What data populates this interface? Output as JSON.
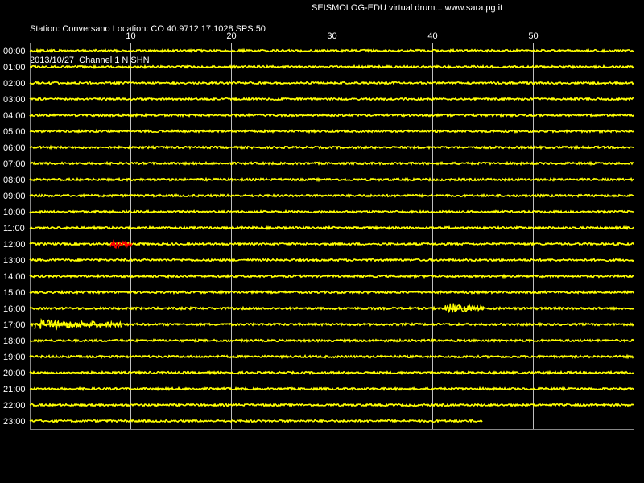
{
  "header": {
    "station_line": "Station: Conversano Location: CO 40.9712 17.1028 SPS:50",
    "date_line": "2013/10/27  Channel 1 N SHN",
    "app_line": "SEISMOLOG-EDU virtual drum... www.sara.pg.it"
  },
  "colors": {
    "background": "#000000",
    "trace": "#ffff00",
    "event": "#ff0000",
    "grid": "#ffffff",
    "text": "#ffffff"
  },
  "chart_data": {
    "type": "line",
    "xlabel": "",
    "ylabel": "",
    "xlim": [
      0,
      60
    ],
    "x_ticks": [
      "10",
      "20",
      "30",
      "40",
      "50"
    ],
    "x_tick_values": [
      10,
      20,
      30,
      40,
      50
    ],
    "hour_labels": [
      "00:00",
      "01:00",
      "02:00",
      "03:00",
      "04:00",
      "05:00",
      "06:00",
      "07:00",
      "08:00",
      "09:00",
      "10:00",
      "11:00",
      "12:00",
      "13:00",
      "14:00",
      "15:00",
      "16:00",
      "17:00",
      "18:00",
      "19:00",
      "20:00",
      "21:00",
      "22:00",
      "23:00"
    ],
    "trace_end_minute": [
      60,
      60,
      60,
      60,
      60,
      60,
      60,
      60,
      60,
      60,
      60,
      60,
      60,
      60,
      60,
      60,
      60,
      60,
      60,
      60,
      60,
      60,
      60,
      45
    ],
    "events": [
      {
        "hour": "12:00",
        "start_minute": 8.0,
        "end_minute": 10.2,
        "color": "red"
      },
      {
        "hour": "16:00",
        "start_minute": 41.3,
        "end_minute": 45.2,
        "color": "yellow"
      },
      {
        "hour": "17:00",
        "start_minute": 0.5,
        "end_minute": 9.2,
        "color": "yellow"
      }
    ]
  }
}
